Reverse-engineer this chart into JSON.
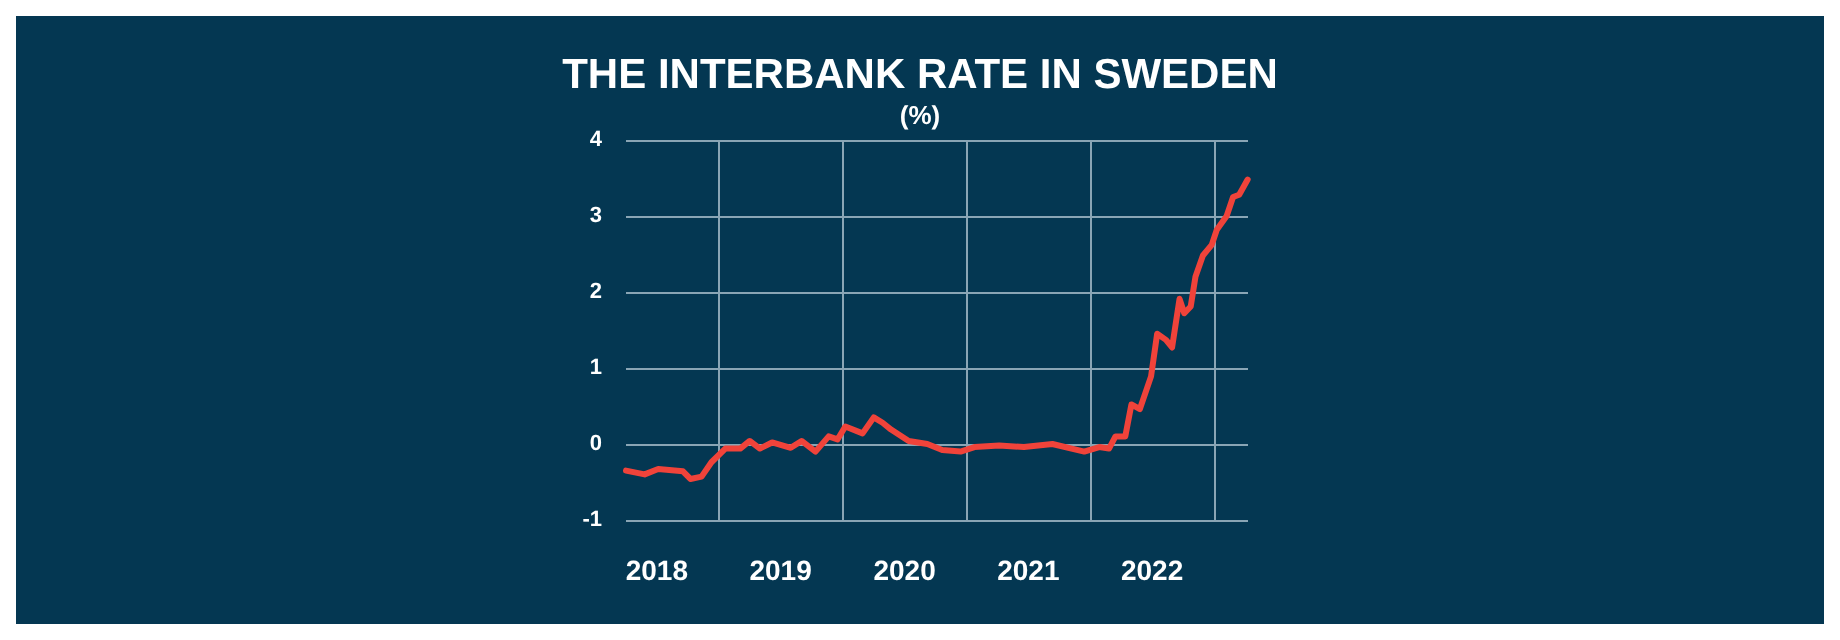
{
  "chart_data": {
    "type": "line",
    "title": "THE INTERBANK RATE IN SWEDEN",
    "subtitle": "(%)",
    "x": [
      "2018-04-01",
      "2018-05-26",
      "2018-07-05",
      "2018-09-16",
      "2018-10-08",
      "2018-11-10",
      "2018-12-09",
      "2019-01-19",
      "2019-03-04",
      "2019-04-01",
      "2019-05-01",
      "2019-06-06",
      "2019-07-31",
      "2019-09-01",
      "2019-10-12",
      "2019-11-20",
      "2019-12-16",
      "2020-01-08",
      "2020-02-28",
      "2020-04-01",
      "2020-04-27",
      "2020-05-22",
      "2020-07-13",
      "2020-09-06",
      "2020-10-20",
      "2020-12-13",
      "2021-01-23",
      "2021-04-06",
      "2021-06-18",
      "2021-09-10",
      "2021-12-13",
      "2022-01-26",
      "2022-02-24",
      "2022-03-15",
      "2022-04-13",
      "2022-05-01",
      "2022-05-26",
      "2022-06-28",
      "2022-07-16",
      "2022-08-11",
      "2022-08-29",
      "2022-09-20",
      "2022-10-04",
      "2022-10-23",
      "2022-11-06",
      "2022-11-28",
      "2022-12-24",
      "2023-01-08",
      "2023-02-06",
      "2023-02-25",
      "2023-03-15",
      "2023-04-09"
    ],
    "series": [
      {
        "color": "#f0433a",
        "values": [
          -0.35,
          -0.4,
          -0.33,
          -0.36,
          -0.46,
          -0.43,
          -0.24,
          -0.06,
          -0.06,
          0.04,
          -0.06,
          0.02,
          -0.05,
          0.04,
          -0.1,
          0.1,
          0.06,
          0.23,
          0.14,
          0.35,
          0.28,
          0.19,
          0.04,
          0,
          -0.08,
          -0.1,
          -0.04,
          -0.02,
          -0.04,
          0,
          -0.1,
          -0.04,
          -0.06,
          0.1,
          0.1,
          0.52,
          0.46,
          0.89,
          1.45,
          1.37,
          1.27,
          1.91,
          1.72,
          1.81,
          2.2,
          2.48,
          2.62,
          2.82,
          3.0,
          3.25,
          3.28,
          3.48
        ]
      }
    ],
    "xlim": [
      "2018-04-01",
      "2023-04-10"
    ],
    "xticks": [
      {
        "value": "2018-07-01",
        "label": "2018"
      },
      {
        "value": "2019-01-01",
        "label": null
      },
      {
        "value": "2019-07-01",
        "label": "2019"
      },
      {
        "value": "2020-01-01",
        "label": null
      },
      {
        "value": "2020-07-01",
        "label": "2020"
      },
      {
        "value": "2021-01-01",
        "label": null
      },
      {
        "value": "2021-07-01",
        "label": "2021"
      },
      {
        "value": "2022-01-01",
        "label": null
      },
      {
        "value": "2022-07-01",
        "label": "2022"
      },
      {
        "value": "2023-01-01",
        "label": null
      }
    ],
    "ylim": [
      -1,
      4
    ],
    "yticks": [
      -1,
      0,
      1,
      2,
      3,
      4
    ],
    "grid": true,
    "marker": "none",
    "line_style": "solid"
  }
}
